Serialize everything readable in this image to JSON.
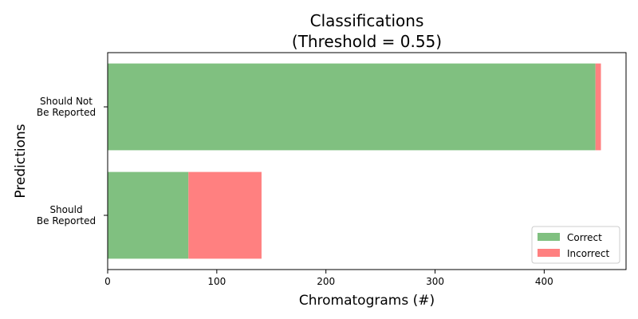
{
  "chart_data": {
    "type": "bar",
    "orientation": "horizontal",
    "stacked": true,
    "title": [
      "Classifications",
      "(Threshold = 0.55)"
    ],
    "xlabel": "Chromatograms (#)",
    "ylabel": "Predictions",
    "categories": [
      [
        "Should",
        "Be Reported"
      ],
      [
        "Should Not",
        "Be Reported"
      ]
    ],
    "series": [
      {
        "name": "Correct",
        "color": "#80c080",
        "values": [
          74,
          447
        ]
      },
      {
        "name": "Incorrect",
        "color": "#ff8080",
        "values": [
          67,
          5
        ]
      }
    ],
    "xlim": [
      0,
      475
    ],
    "xticks": [
      0,
      100,
      200,
      300,
      400
    ],
    "grid": false,
    "legend_position": "lower-right"
  }
}
